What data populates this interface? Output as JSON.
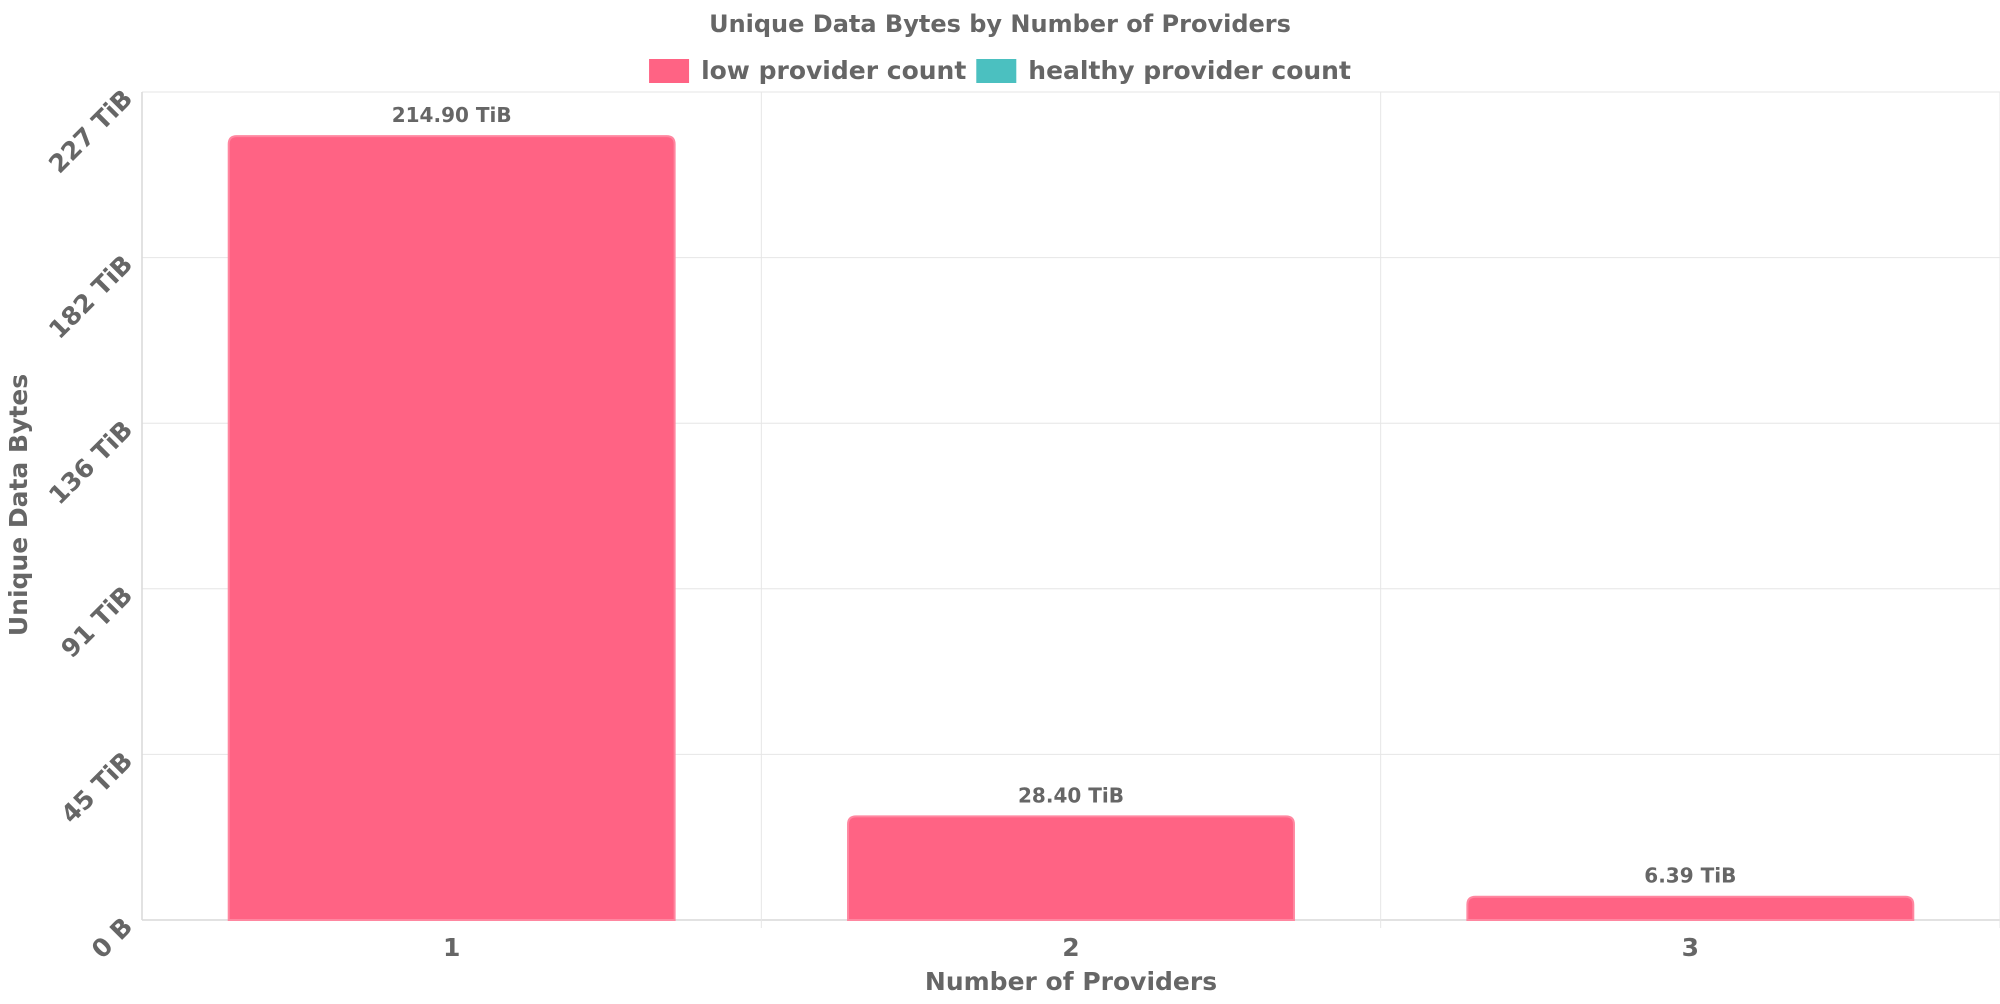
{
  "chart_data": {
    "type": "bar",
    "title": "Unique Data Bytes by Number of Providers",
    "xlabel": "Number of Providers",
    "ylabel": "Unique Data Bytes",
    "categories": [
      "1",
      "2",
      "3"
    ],
    "series": [
      {
        "name": "low provider count",
        "color": "#ff6384",
        "values": [
          214.9,
          28.4,
          6.39
        ],
        "data_labels": [
          "214.90 TiB",
          "28.40 TiB",
          "6.39 TiB"
        ]
      },
      {
        "name": "healthy provider count",
        "color": "#4bc0c0",
        "values": [
          0,
          0,
          0
        ],
        "data_labels": []
      }
    ],
    "y_unit": "TiB",
    "ylim": [
      0,
      227
    ],
    "y_ticks": [
      0,
      45.4,
      90.8,
      136.2,
      181.6,
      227
    ],
    "y_tick_labels": [
      "0 B",
      "45 TiB",
      "91 TiB",
      "136 TiB",
      "182 TiB",
      "227 TiB"
    ],
    "grid": true,
    "legend_position": "top"
  }
}
